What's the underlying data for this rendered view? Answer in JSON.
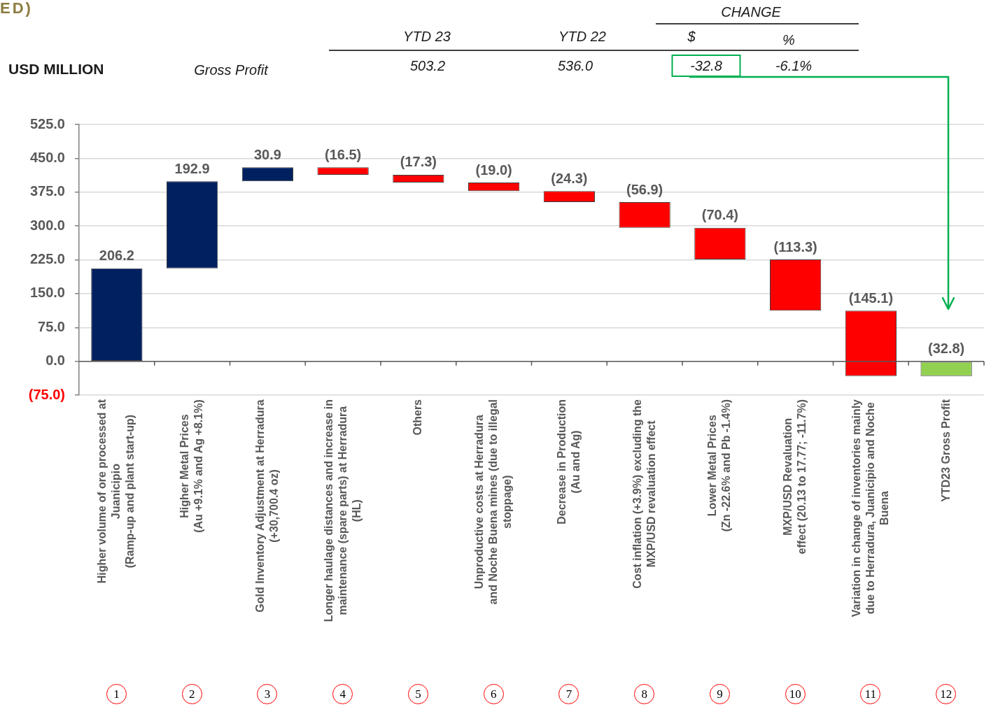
{
  "chart_data": {
    "type": "bar",
    "title": "ED)",
    "categories": [
      "Higher volume of ore processed at\nJuanicipio\n(Ramp-up and plant start-up)",
      "Higher Metal Prices\n(Au +9.1% and Ag +8.1%)",
      "Gold Inventory Adjustment at Herradura\n(+30,700.4 oz)",
      "Longer haulage distances and increase in\nmaintenance (spare parts) at Herradura\n(HL)",
      "Others",
      "Unproductive costs at Herradura\nand Noche Buena mines (due to illegal\nstoppage)",
      "Decrease in Production\n(Au and Ag)",
      "Cost inflation (+3.9%) excluding the\nMXP/USD revaluation effect",
      "Lower Metal Prices\n(Zn -22.6% and Pb -1.4%)",
      "MXP/USD Revaluation\neffect (20.13 to 17.77; -11.7%)",
      "Variation in change of inventories mainly\ndue to Herradura, Juanicipio and Noche\nBuena",
      "YTD23 Gross Profit"
    ],
    "values": [
      206.2,
      192.9,
      30.9,
      -16.5,
      -17.3,
      -19.0,
      -24.3,
      -56.9,
      -70.4,
      -113.3,
      -145.1,
      -32.8
    ],
    "base": [
      0,
      206.2,
      399.1,
      430.0,
      413.5,
      396.2,
      377.2,
      352.9,
      296.0,
      225.6,
      112.3,
      0
    ],
    "colors": [
      "#002060",
      "#002060",
      "#002060",
      "#ff0000",
      "#ff0000",
      "#ff0000",
      "#ff0000",
      "#ff0000",
      "#ff0000",
      "#ff0000",
      "#ff0000",
      "#92d050"
    ],
    "value_labels": [
      "206.2",
      "192.9",
      "30.9",
      "(16.5)",
      "(17.3)",
      "(19.0)",
      "(24.3)",
      "(56.9)",
      "(70.4)",
      "(113.3)",
      "(145.1)",
      "(32.8)"
    ],
    "ylim": [
      -75,
      525
    ],
    "yticks": [
      {
        "value": -75,
        "label": "(75.0)"
      },
      {
        "value": 0,
        "label": "0.0"
      },
      {
        "value": 75,
        "label": "75.0"
      },
      {
        "value": 150,
        "label": "150.0"
      },
      {
        "value": 225,
        "label": "225.0"
      },
      {
        "value": 300,
        "label": "300.0"
      },
      {
        "value": 375,
        "label": "375.0"
      },
      {
        "value": 450,
        "label": "450.0"
      },
      {
        "value": 525,
        "label": "525.0"
      }
    ],
    "grid": "y",
    "annotations": [
      "CHANGE",
      "YTD 23",
      "YTD 22",
      "$",
      "%",
      "USD MILLION",
      "Gross Profit",
      "503.2",
      "536.0",
      "-32.8",
      "-6.1%",
      "1",
      "2",
      "3",
      "4",
      "5",
      "6",
      "7",
      "8",
      "9",
      "10",
      "11",
      "12"
    ]
  }
}
